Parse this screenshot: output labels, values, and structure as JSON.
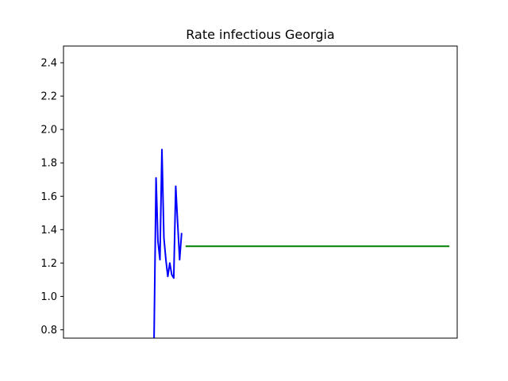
{
  "chart_data": {
    "type": "line",
    "title": "Rate infectious Georgia",
    "xlabel": "",
    "ylabel": "",
    "ylim": [
      0.75,
      2.5
    ],
    "xlim": [
      0,
      100
    ],
    "yticks": [
      0.8,
      1.0,
      1.2,
      1.4,
      1.6,
      1.8,
      2.0,
      2.2,
      2.4
    ],
    "xticks": [],
    "grid": false,
    "legend": "none",
    "series": [
      {
        "color": "#0000ff",
        "x": [
          23,
          23.5,
          24,
          24.5,
          25,
          25.5,
          26,
          26.5,
          27,
          27.5,
          28,
          28.5,
          29,
          29.5,
          30,
          30.5,
          31
        ],
        "y": [
          0.75,
          1.71,
          1.33,
          1.22,
          1.88,
          1.35,
          1.22,
          1.12,
          1.2,
          1.13,
          1.11,
          1.66,
          1.44,
          1.22,
          1.38,
          null,
          null
        ]
      },
      {
        "color": "#008000",
        "x": [
          31,
          98
        ],
        "y": [
          1.3,
          1.3
        ]
      }
    ]
  }
}
